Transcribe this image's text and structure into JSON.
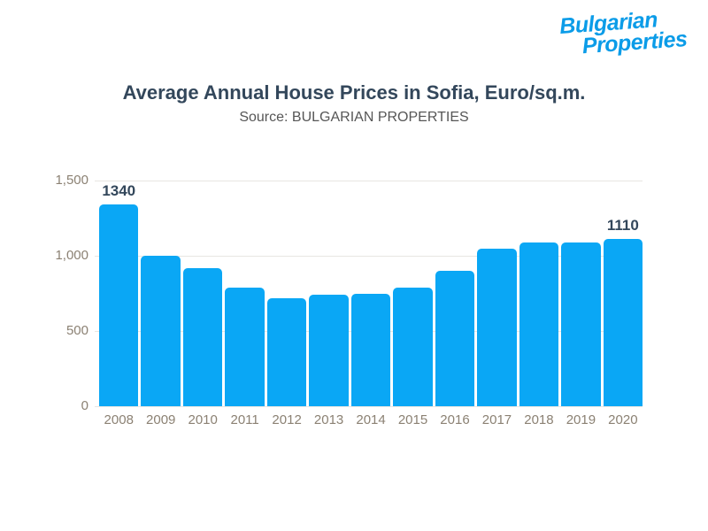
{
  "logo": {
    "line1": "Bulgarian",
    "line2": "Properties"
  },
  "header": {
    "title": "Average Annual House Prices in Sofia, Euro/sq.m.",
    "subtitle": "Source: BULGARIAN PROPERTIES"
  },
  "chart_data": {
    "type": "bar",
    "title": "Average Annual House Prices in Sofia, Euro/sq.m.",
    "subtitle": "Source: BULGARIAN PROPERTIES",
    "categories": [
      "2008",
      "2009",
      "2010",
      "2011",
      "2012",
      "2013",
      "2014",
      "2015",
      "2016",
      "2017",
      "2018",
      "2019",
      "2020"
    ],
    "values": [
      1340,
      1000,
      920,
      790,
      720,
      740,
      745,
      790,
      900,
      1050,
      1090,
      1090,
      1110
    ],
    "data_labels": [
      {
        "index": 0,
        "text": "1340"
      },
      {
        "index": 12,
        "text": "1110"
      }
    ],
    "yticks": [
      {
        "label": "1,500",
        "value": 1500
      },
      {
        "label": "1,000",
        "value": 1000
      },
      {
        "label": "500",
        "value": 500
      },
      {
        "label": "0",
        "value": 0
      }
    ],
    "ylim": [
      0,
      1500
    ],
    "xlabel": "",
    "ylabel": "",
    "grid": true,
    "legend": false,
    "bar_color": "#0aa7f5"
  },
  "colors": {
    "background": "#ffffff",
    "bar": "#0aa7f5",
    "title": "#33475b",
    "subtitle": "#565656",
    "axis_label": "#8b8173",
    "gridline": "#e8e6e2",
    "data_label": "#33475b",
    "logo": "#0b9ce8"
  }
}
